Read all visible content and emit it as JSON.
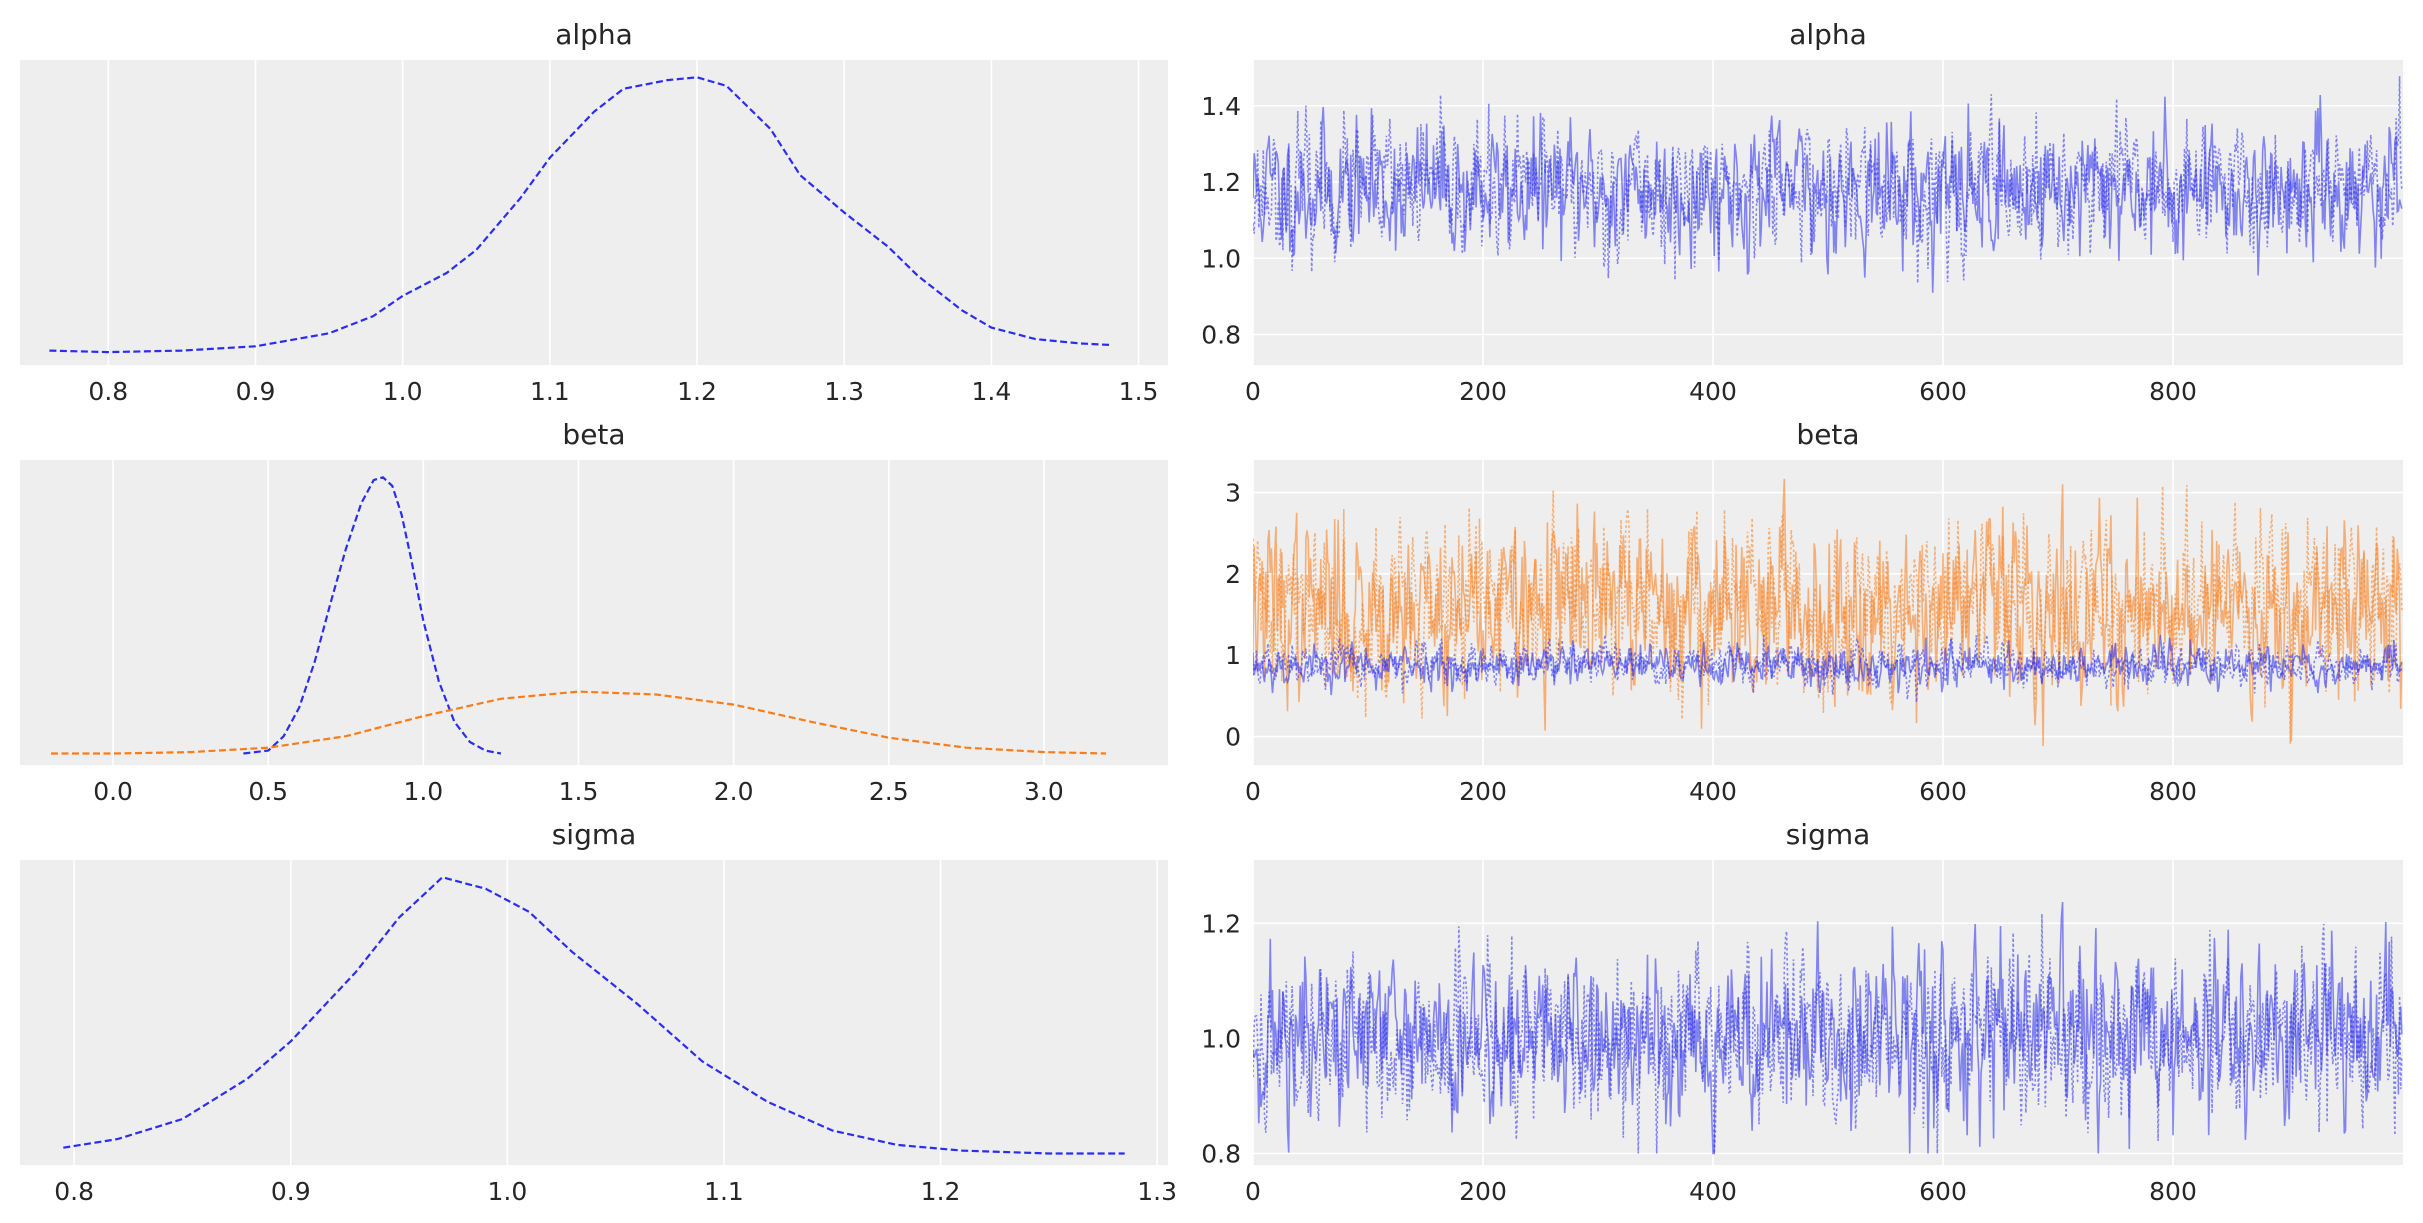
{
  "colors": {
    "chain_blue": "#2a2eec",
    "chain_orange": "#fa7c17",
    "panel_background": "#eeeeee",
    "grid": "#ffffff",
    "text": "#262626"
  },
  "chart_data": [
    {
      "type": "line",
      "title": "alpha",
      "xlabel": "",
      "ylabel": "",
      "xlim": [
        0.74,
        1.52
      ],
      "ylim": [
        0,
        1.06
      ],
      "grid": true,
      "x_ticks": [
        0.8,
        0.9,
        1.0,
        1.1,
        1.2,
        1.3,
        1.4,
        1.5
      ],
      "x_tick_labels": [
        "0.8",
        "0.9",
        "1.0",
        "1.1",
        "1.2",
        "1.3",
        "1.4",
        "1.5"
      ],
      "series": [
        {
          "color": "#2a2eec",
          "style": "dashed",
          "x": [
            0.76,
            0.8,
            0.85,
            0.9,
            0.95,
            0.98,
            1.0,
            1.03,
            1.05,
            1.08,
            1.1,
            1.13,
            1.15,
            1.18,
            1.2,
            1.22,
            1.25,
            1.27,
            1.3,
            1.33,
            1.35,
            1.38,
            1.4,
            1.43,
            1.46,
            1.48
          ],
          "y": [
            0.05,
            0.045,
            0.05,
            0.065,
            0.11,
            0.17,
            0.24,
            0.32,
            0.4,
            0.58,
            0.72,
            0.88,
            0.96,
            0.99,
            1.0,
            0.97,
            0.82,
            0.66,
            0.53,
            0.41,
            0.31,
            0.19,
            0.13,
            0.09,
            0.075,
            0.07
          ]
        }
      ]
    },
    {
      "type": "line",
      "title": "alpha",
      "xlabel": "",
      "ylabel": "",
      "xlim": [
        0,
        1000
      ],
      "ylim": [
        0.72,
        1.52
      ],
      "grid": true,
      "x_ticks": [
        0,
        200,
        400,
        600,
        800
      ],
      "x_tick_labels": [
        "0",
        "200",
        "400",
        "600",
        "800"
      ],
      "y_ticks": [
        0.8,
        1.0,
        1.2,
        1.4
      ],
      "y_tick_labels": [
        "0.8",
        "1.0",
        "1.2",
        "1.4"
      ],
      "series": [
        {
          "color": "#2a2eec",
          "style": "solid",
          "mean": 1.18,
          "sd": 0.08,
          "min": 0.76,
          "max": 1.48,
          "n_draws": 1000,
          "seed": 11
        },
        {
          "color": "#2a2eec",
          "style": "dotted",
          "mean": 1.18,
          "sd": 0.08,
          "min": 0.76,
          "max": 1.48,
          "n_draws": 1000,
          "seed": 23
        }
      ]
    },
    {
      "type": "line",
      "title": "beta",
      "xlabel": "",
      "ylabel": "",
      "xlim": [
        -0.3,
        3.4
      ],
      "ylim": [
        0,
        1.06
      ],
      "grid": true,
      "x_ticks": [
        0.0,
        0.5,
        1.0,
        1.5,
        2.0,
        2.5,
        3.0
      ],
      "x_tick_labels": [
        "0.0",
        "0.5",
        "1.0",
        "1.5",
        "2.0",
        "2.5",
        "3.0"
      ],
      "series": [
        {
          "color": "#2a2eec",
          "style": "dashed",
          "x": [
            0.42,
            0.5,
            0.55,
            0.6,
            0.65,
            0.7,
            0.75,
            0.8,
            0.84,
            0.87,
            0.9,
            0.93,
            0.96,
            1.0,
            1.05,
            1.1,
            1.15,
            1.2,
            1.25
          ],
          "y": [
            0.04,
            0.05,
            0.1,
            0.2,
            0.36,
            0.56,
            0.75,
            0.91,
            0.99,
            1.0,
            0.97,
            0.87,
            0.72,
            0.5,
            0.29,
            0.15,
            0.08,
            0.05,
            0.04
          ]
        },
        {
          "color": "#fa7c17",
          "style": "dashed",
          "x": [
            -0.2,
            0.0,
            0.25,
            0.5,
            0.75,
            1.0,
            1.25,
            1.5,
            1.75,
            2.0,
            2.25,
            2.5,
            2.75,
            3.0,
            3.2
          ],
          "y": [
            0.04,
            0.04,
            0.045,
            0.06,
            0.1,
            0.17,
            0.23,
            0.255,
            0.245,
            0.21,
            0.15,
            0.095,
            0.06,
            0.045,
            0.04
          ]
        }
      ]
    },
    {
      "type": "line",
      "title": "beta",
      "xlabel": "",
      "ylabel": "",
      "xlim": [
        0,
        1000
      ],
      "ylim": [
        -0.35,
        3.4
      ],
      "grid": true,
      "x_ticks": [
        0,
        200,
        400,
        600,
        800
      ],
      "x_tick_labels": [
        "0",
        "200",
        "400",
        "600",
        "800"
      ],
      "y_ticks": [
        0,
        1,
        2,
        3
      ],
      "y_tick_labels": [
        "0",
        "1",
        "2",
        "3"
      ],
      "series": [
        {
          "color": "#fa7c17",
          "style": "solid",
          "mean": 1.6,
          "sd": 0.5,
          "min": -0.2,
          "max": 3.2,
          "n_draws": 1000,
          "seed": 37
        },
        {
          "color": "#fa7c17",
          "style": "dotted",
          "mean": 1.6,
          "sd": 0.5,
          "min": -0.2,
          "max": 3.2,
          "n_draws": 1000,
          "seed": 41
        },
        {
          "color": "#2a2eec",
          "style": "solid",
          "mean": 0.87,
          "sd": 0.12,
          "min": 0.4,
          "max": 1.25,
          "n_draws": 1000,
          "seed": 53
        },
        {
          "color": "#2a2eec",
          "style": "dotted",
          "mean": 0.87,
          "sd": 0.12,
          "min": 0.4,
          "max": 1.25,
          "n_draws": 1000,
          "seed": 67
        }
      ]
    },
    {
      "type": "line",
      "title": "sigma",
      "xlabel": "",
      "ylabel": "",
      "xlim": [
        0.775,
        1.305
      ],
      "ylim": [
        0,
        1.06
      ],
      "grid": true,
      "x_ticks": [
        0.8,
        0.9,
        1.0,
        1.1,
        1.2,
        1.3
      ],
      "x_tick_labels": [
        "0.8",
        "0.9",
        "1.0",
        "1.1",
        "1.2",
        "1.3"
      ],
      "series": [
        {
          "color": "#2a2eec",
          "style": "dashed",
          "x": [
            0.795,
            0.82,
            0.85,
            0.88,
            0.9,
            0.93,
            0.95,
            0.97,
            0.99,
            1.01,
            1.03,
            1.06,
            1.09,
            1.12,
            1.15,
            1.18,
            1.21,
            1.25,
            1.285
          ],
          "y": [
            0.06,
            0.09,
            0.16,
            0.3,
            0.43,
            0.67,
            0.86,
            1.0,
            0.96,
            0.88,
            0.74,
            0.56,
            0.36,
            0.22,
            0.12,
            0.07,
            0.05,
            0.04,
            0.04
          ]
        }
      ]
    },
    {
      "type": "line",
      "title": "sigma",
      "xlabel": "",
      "ylabel": "",
      "xlim": [
        0,
        1000
      ],
      "ylim": [
        0.78,
        1.31
      ],
      "grid": true,
      "x_ticks": [
        0,
        200,
        400,
        600,
        800
      ],
      "x_tick_labels": [
        "0",
        "200",
        "400",
        "600",
        "800"
      ],
      "y_ticks": [
        0.8,
        1.0,
        1.2
      ],
      "y_tick_labels": [
        "0.8",
        "1.0",
        "1.2"
      ],
      "series": [
        {
          "color": "#2a2eec",
          "style": "solid",
          "mean": 1.0,
          "sd": 0.07,
          "min": 0.8,
          "max": 1.28,
          "n_draws": 1000,
          "seed": 71
        },
        {
          "color": "#2a2eec",
          "style": "dotted",
          "mean": 1.0,
          "sd": 0.07,
          "min": 0.8,
          "max": 1.28,
          "n_draws": 1000,
          "seed": 89
        }
      ]
    }
  ]
}
